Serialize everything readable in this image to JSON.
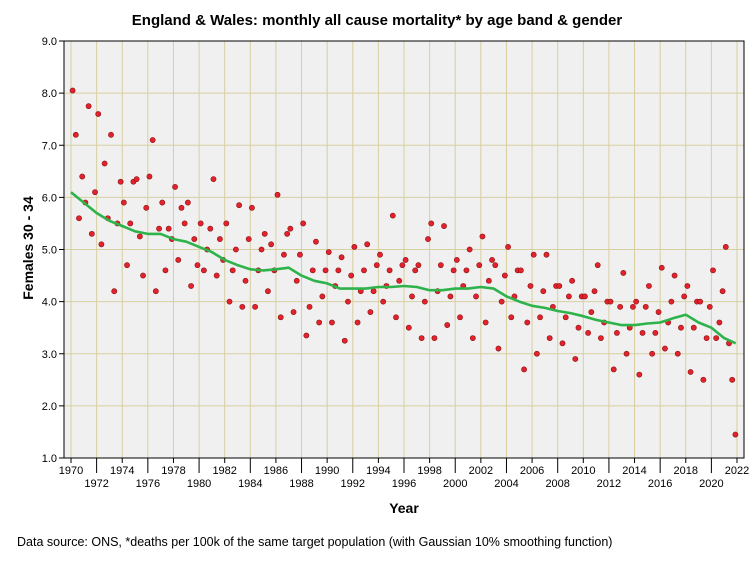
{
  "chart_data": {
    "type": "scatter",
    "title": "England & Wales: monthly all cause mortality* by age band & gender",
    "xlabel": "Year",
    "ylabel": "Females 30 - 34",
    "xlim": [
      1969.5,
      2022.5
    ],
    "ylim": [
      1.0,
      9.0
    ],
    "yticks": [
      "1.0",
      "2.0",
      "3.0",
      "4.0",
      "5.0",
      "6.0",
      "7.0",
      "8.0",
      "9.0"
    ],
    "xticks": [
      "1970",
      "1972",
      "1974",
      "1976",
      "1978",
      "1980",
      "1982",
      "1984",
      "1986",
      "1988",
      "1990",
      "1992",
      "1994",
      "1996",
      "1998",
      "2000",
      "2002",
      "2004",
      "2006",
      "2008",
      "2010",
      "2012",
      "2014",
      "2016",
      "2018",
      "2020",
      "2022"
    ],
    "grid": true,
    "colors": {
      "points": "#e3232c",
      "point_edge": "#8a1015",
      "smooth": "#2db34a",
      "grid": "#d8cfa0",
      "plot_bg": "#f0f0f0"
    },
    "scatter_start_year": 1970,
    "scatter_per_year": 4,
    "scatter_values": [
      8.05,
      7.2,
      5.6,
      6.4,
      5.9,
      7.75,
      5.3,
      6.1,
      7.6,
      5.1,
      6.65,
      5.6,
      7.2,
      4.2,
      5.5,
      6.3,
      5.9,
      4.7,
      5.5,
      6.3,
      6.35,
      5.25,
      4.5,
      5.8,
      6.4,
      7.1,
      4.2,
      5.4,
      5.9,
      4.6,
      5.4,
      5.2,
      6.2,
      4.8,
      5.8,
      5.5,
      5.9,
      4.3,
      5.2,
      4.7,
      5.5,
      4.6,
      5.0,
      5.4,
      6.35,
      4.5,
      5.2,
      4.8,
      5.5,
      4.0,
      4.6,
      5.0,
      5.85,
      3.9,
      4.4,
      5.2,
      5.8,
      3.9,
      4.6,
      5.0,
      5.3,
      4.2,
      5.1,
      4.6,
      6.05,
      3.7,
      4.9,
      5.3,
      5.4,
      3.8,
      4.4,
      4.9,
      5.5,
      3.35,
      3.9,
      4.6,
      5.15,
      3.6,
      4.1,
      4.6,
      4.95,
      3.6,
      4.3,
      4.6,
      4.85,
      3.25,
      4.0,
      4.5,
      5.05,
      3.6,
      4.2,
      4.6,
      5.1,
      3.8,
      4.2,
      4.7,
      4.9,
      4.0,
      4.3,
      4.6,
      5.65,
      3.7,
      4.4,
      4.7,
      4.8,
      3.5,
      4.1,
      4.6,
      4.7,
      3.3,
      4.0,
      5.2,
      5.5,
      3.3,
      4.2,
      4.7,
      5.45,
      3.55,
      4.1,
      4.6,
      4.8,
      3.7,
      4.3,
      4.6,
      5.0,
      3.3,
      4.1,
      4.7,
      5.25,
      3.6,
      4.4,
      4.8,
      4.7,
      3.1,
      4.0,
      4.5,
      5.05,
      3.7,
      4.1,
      4.6,
      4.6,
      2.7,
      3.6,
      4.3,
      4.9,
      3.0,
      3.7,
      4.2,
      4.9,
      3.3,
      3.9,
      4.3,
      4.3,
      3.2,
      3.7,
      4.1,
      4.4,
      2.9,
      3.5,
      4.1,
      4.1,
      3.4,
      3.8,
      4.2,
      4.7,
      3.3,
      3.6,
      4.0,
      4.0,
      2.7,
      3.4,
      3.9,
      4.55,
      3.0,
      3.5,
      3.9,
      4.0,
      2.6,
      3.4,
      3.9,
      4.3,
      3.0,
      3.4,
      3.8,
      4.65,
      3.1,
      3.6,
      4.0,
      4.5,
      3.0,
      3.5,
      4.1,
      4.3,
      2.65,
      3.5,
      4.0,
      4.0,
      2.5,
      3.3,
      3.9,
      4.6,
      3.3,
      3.6,
      4.2,
      5.05,
      3.2,
      2.5,
      1.45
    ],
    "smooth_label": "Gaussian 10% smoothing",
    "smooth_years": [
      1970,
      1971,
      1972,
      1973,
      1974,
      1975,
      1976,
      1977,
      1978,
      1979,
      1980,
      1981,
      1982,
      1983,
      1984,
      1985,
      1986,
      1987,
      1988,
      1989,
      1990,
      1991,
      1992,
      1993,
      1994,
      1995,
      1996,
      1997,
      1998,
      1999,
      2000,
      2001,
      2002,
      2003,
      2004,
      2005,
      2006,
      2007,
      2008,
      2009,
      2010,
      2011,
      2012,
      2013,
      2014,
      2015,
      2016,
      2017,
      2018,
      2019,
      2020,
      2021,
      2021.9
    ],
    "smooth_values": [
      6.1,
      5.9,
      5.7,
      5.55,
      5.45,
      5.35,
      5.3,
      5.3,
      5.2,
      5.15,
      5.05,
      4.95,
      4.8,
      4.7,
      4.62,
      4.6,
      4.62,
      4.65,
      4.5,
      4.4,
      4.35,
      4.25,
      4.25,
      4.25,
      4.28,
      4.28,
      4.3,
      4.28,
      4.22,
      4.22,
      4.25,
      4.25,
      4.28,
      4.25,
      4.1,
      4.0,
      3.92,
      3.88,
      3.82,
      3.78,
      3.72,
      3.65,
      3.6,
      3.55,
      3.55,
      3.58,
      3.6,
      3.68,
      3.75,
      3.6,
      3.5,
      3.3,
      3.2
    ]
  },
  "footer": "Data source: ONS, *deaths per 100k of the same target population (with Gaussian 10% smoothing function)"
}
